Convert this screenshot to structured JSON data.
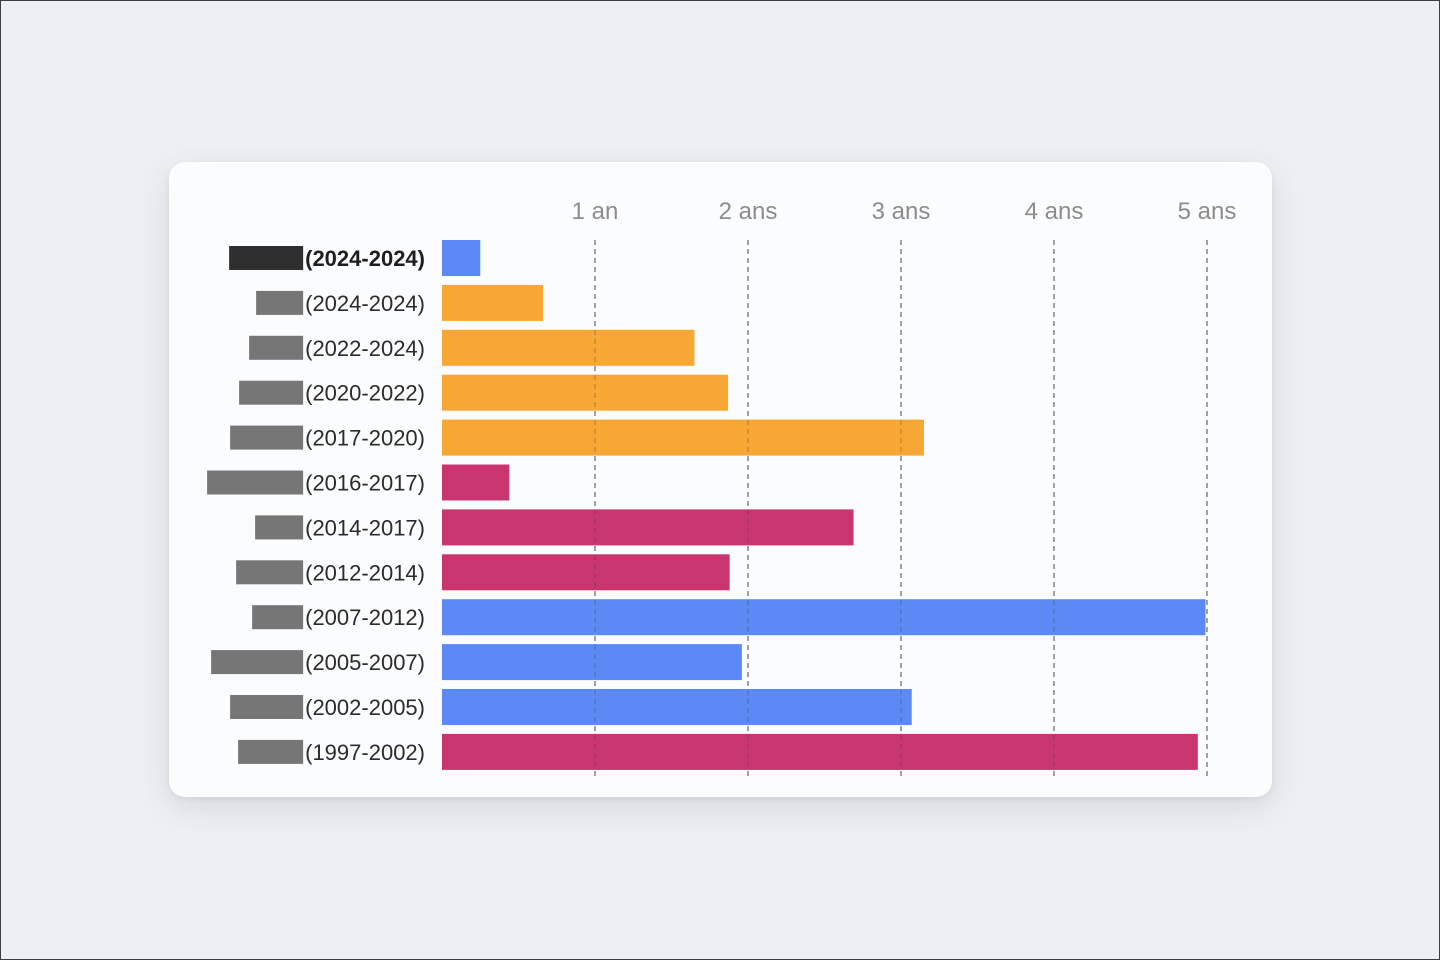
{
  "chart_data": {
    "type": "bar",
    "orientation": "horizontal",
    "categories": [
      "(2024-2024)",
      "(2024-2024)",
      "(2022-2024)",
      "(2020-2022)",
      "(2017-2020)",
      "(2016-2017)",
      "(2014-2017)",
      "(2012-2014)",
      "(2007-2012)",
      "(2005-2007)",
      "(2002-2005)",
      "(1997-2002)"
    ],
    "values": [
      0.25,
      0.66,
      1.65,
      1.87,
      3.15,
      0.44,
      2.69,
      1.88,
      4.99,
      1.96,
      3.07,
      4.94
    ],
    "bar_colors": [
      "#5b8af5",
      "#f7a733",
      "#f7a733",
      "#f7a733",
      "#f7a733",
      "#c9366f",
      "#c9366f",
      "#c9366f",
      "#5b8af5",
      "#5b8af5",
      "#5b8af5",
      "#c9366f"
    ],
    "redacted": true,
    "highlight_first": true,
    "x_ticks": [
      {
        "value": 1,
        "label": "1 an"
      },
      {
        "value": 2,
        "label": "2 ans"
      },
      {
        "value": 3,
        "label": "3 ans"
      },
      {
        "value": 4,
        "label": "4 ans"
      },
      {
        "value": 5,
        "label": "5 ans"
      }
    ],
    "xlim": [
      0,
      5
    ],
    "grid": "vertical-dashed",
    "xlabel": "",
    "ylabel": "",
    "title": ""
  },
  "colors": {
    "background": "#edf0f3",
    "card": "#fbfcfd",
    "grid": "#8f8f8f",
    "tick_text": "#8c8c8c",
    "redaction": "#767676",
    "redaction_highlight": "#2f2f2f"
  }
}
